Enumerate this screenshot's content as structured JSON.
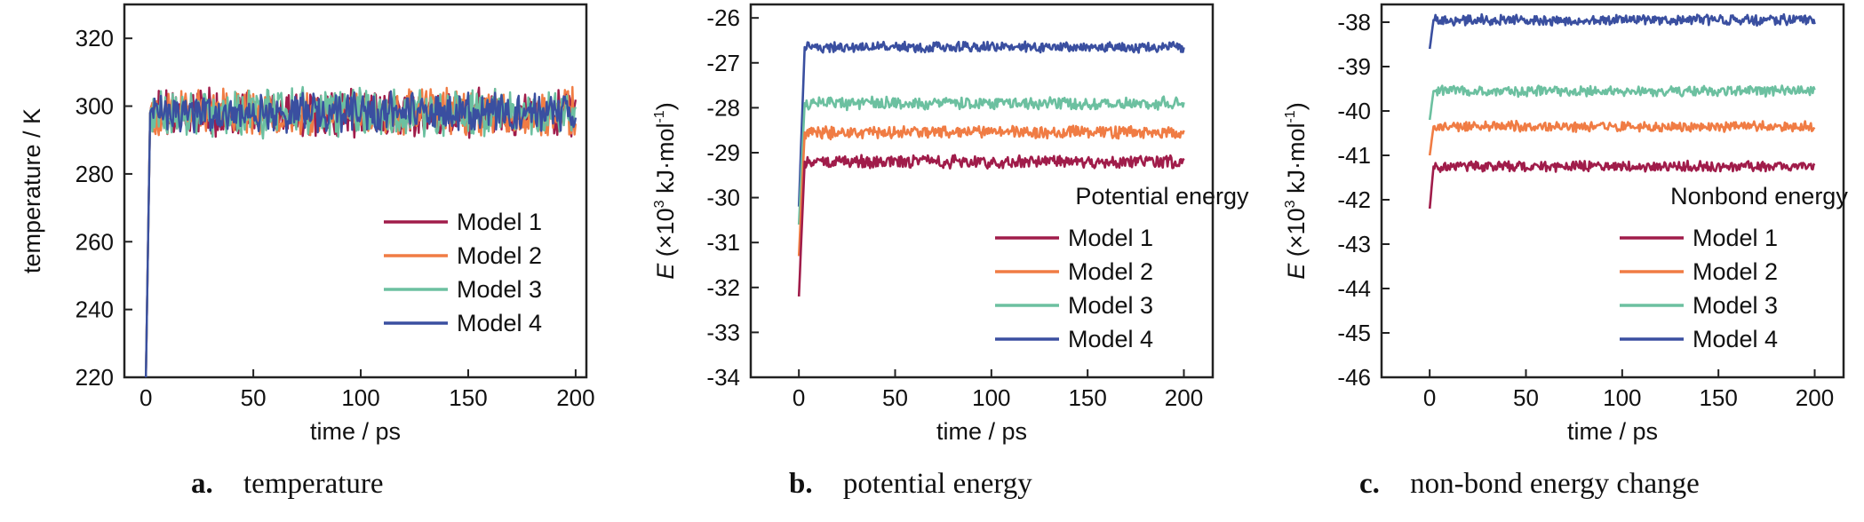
{
  "colors": {
    "Model 1": "#a01c4a",
    "Model 2": "#f07c44",
    "Model 3": "#6cc0a0",
    "Model 4": "#3a4fa0"
  },
  "chart_data": [
    {
      "panel": "a",
      "caption_letter": "a.",
      "caption_text": "temperature",
      "type": "line",
      "title": "",
      "xlabel": "time / ps",
      "ylabel": "temperature / K",
      "xlim": [
        -10,
        205
      ],
      "ylim": [
        220,
        330
      ],
      "xticks": [
        0,
        50,
        100,
        150,
        200
      ],
      "yticks": [
        220,
        240,
        260,
        280,
        300,
        320
      ],
      "grid": false,
      "legend_title": "",
      "legend_position": "lower-right",
      "series": [
        {
          "name": "Model 1",
          "initial": 220,
          "plateau": 298,
          "noise": 6,
          "rise": 2
        },
        {
          "name": "Model 2",
          "initial": 220,
          "plateau": 298,
          "noise": 6,
          "rise": 2
        },
        {
          "name": "Model 3",
          "initial": 220,
          "plateau": 298,
          "noise": 6,
          "rise": 2
        },
        {
          "name": "Model 4",
          "initial": 220,
          "plateau": 298,
          "noise": 5,
          "rise": 2
        }
      ]
    },
    {
      "panel": "b",
      "caption_letter": "b.",
      "caption_text": "potential energy",
      "type": "line",
      "title": "",
      "xlabel": "time / ps",
      "ylabel_italic": "E",
      "ylabel_rest": " (×10",
      "ylabel_sup": "3",
      "ylabel_unit": " kJ·mol",
      "ylabel_unit_sup": "-1",
      "ylabel_close": ")",
      "xlim": [
        -25,
        215
      ],
      "ylim": [
        -34,
        -25.7
      ],
      "xticks": [
        0,
        50,
        100,
        150,
        200
      ],
      "yticks": [
        -34,
        -33,
        -32,
        -31,
        -30,
        -29,
        -28,
        -27,
        -26
      ],
      "grid": false,
      "legend_title": "Potential energy",
      "legend_position": "lower-right",
      "series": [
        {
          "name": "Model 1",
          "initial": -32.2,
          "plateau": -29.2,
          "noise": 0.12,
          "rise": 3
        },
        {
          "name": "Model 2",
          "initial": -31.3,
          "plateau": -28.55,
          "noise": 0.12,
          "rise": 3
        },
        {
          "name": "Model 3",
          "initial": -30.6,
          "plateau": -27.9,
          "noise": 0.12,
          "rise": 3
        },
        {
          "name": "Model 4",
          "initial": -30.2,
          "plateau": -26.65,
          "noise": 0.1,
          "rise": 3
        }
      ]
    },
    {
      "panel": "c",
      "caption_letter": "c.",
      "caption_text": "non-bond energy change",
      "type": "line",
      "title": "",
      "xlabel": "time / ps",
      "ylabel_italic": "E",
      "ylabel_rest": " (×10",
      "ylabel_sup": "3",
      "ylabel_unit": " kJ·mol",
      "ylabel_unit_sup": "-1",
      "ylabel_close": ")",
      "xlim": [
        -25,
        215
      ],
      "ylim": [
        -46,
        -37.6
      ],
      "xticks": [
        0,
        50,
        100,
        150,
        200
      ],
      "yticks": [
        -46,
        -45,
        -44,
        -43,
        -42,
        -41,
        -40,
        -39,
        -38
      ],
      "grid": false,
      "legend_title": "Nonbond energy",
      "legend_position": "lower-right",
      "series": [
        {
          "name": "Model 1",
          "initial": -42.2,
          "plateau": -41.25,
          "noise": 0.1,
          "rise": 2
        },
        {
          "name": "Model 2",
          "initial": -41.0,
          "plateau": -40.35,
          "noise": 0.1,
          "rise": 2
        },
        {
          "name": "Model 3",
          "initial": -40.2,
          "plateau": -39.55,
          "noise": 0.1,
          "rise": 2
        },
        {
          "name": "Model 4",
          "initial": -38.6,
          "plateau": -37.95,
          "noise": 0.1,
          "rise": 2
        }
      ]
    }
  ]
}
